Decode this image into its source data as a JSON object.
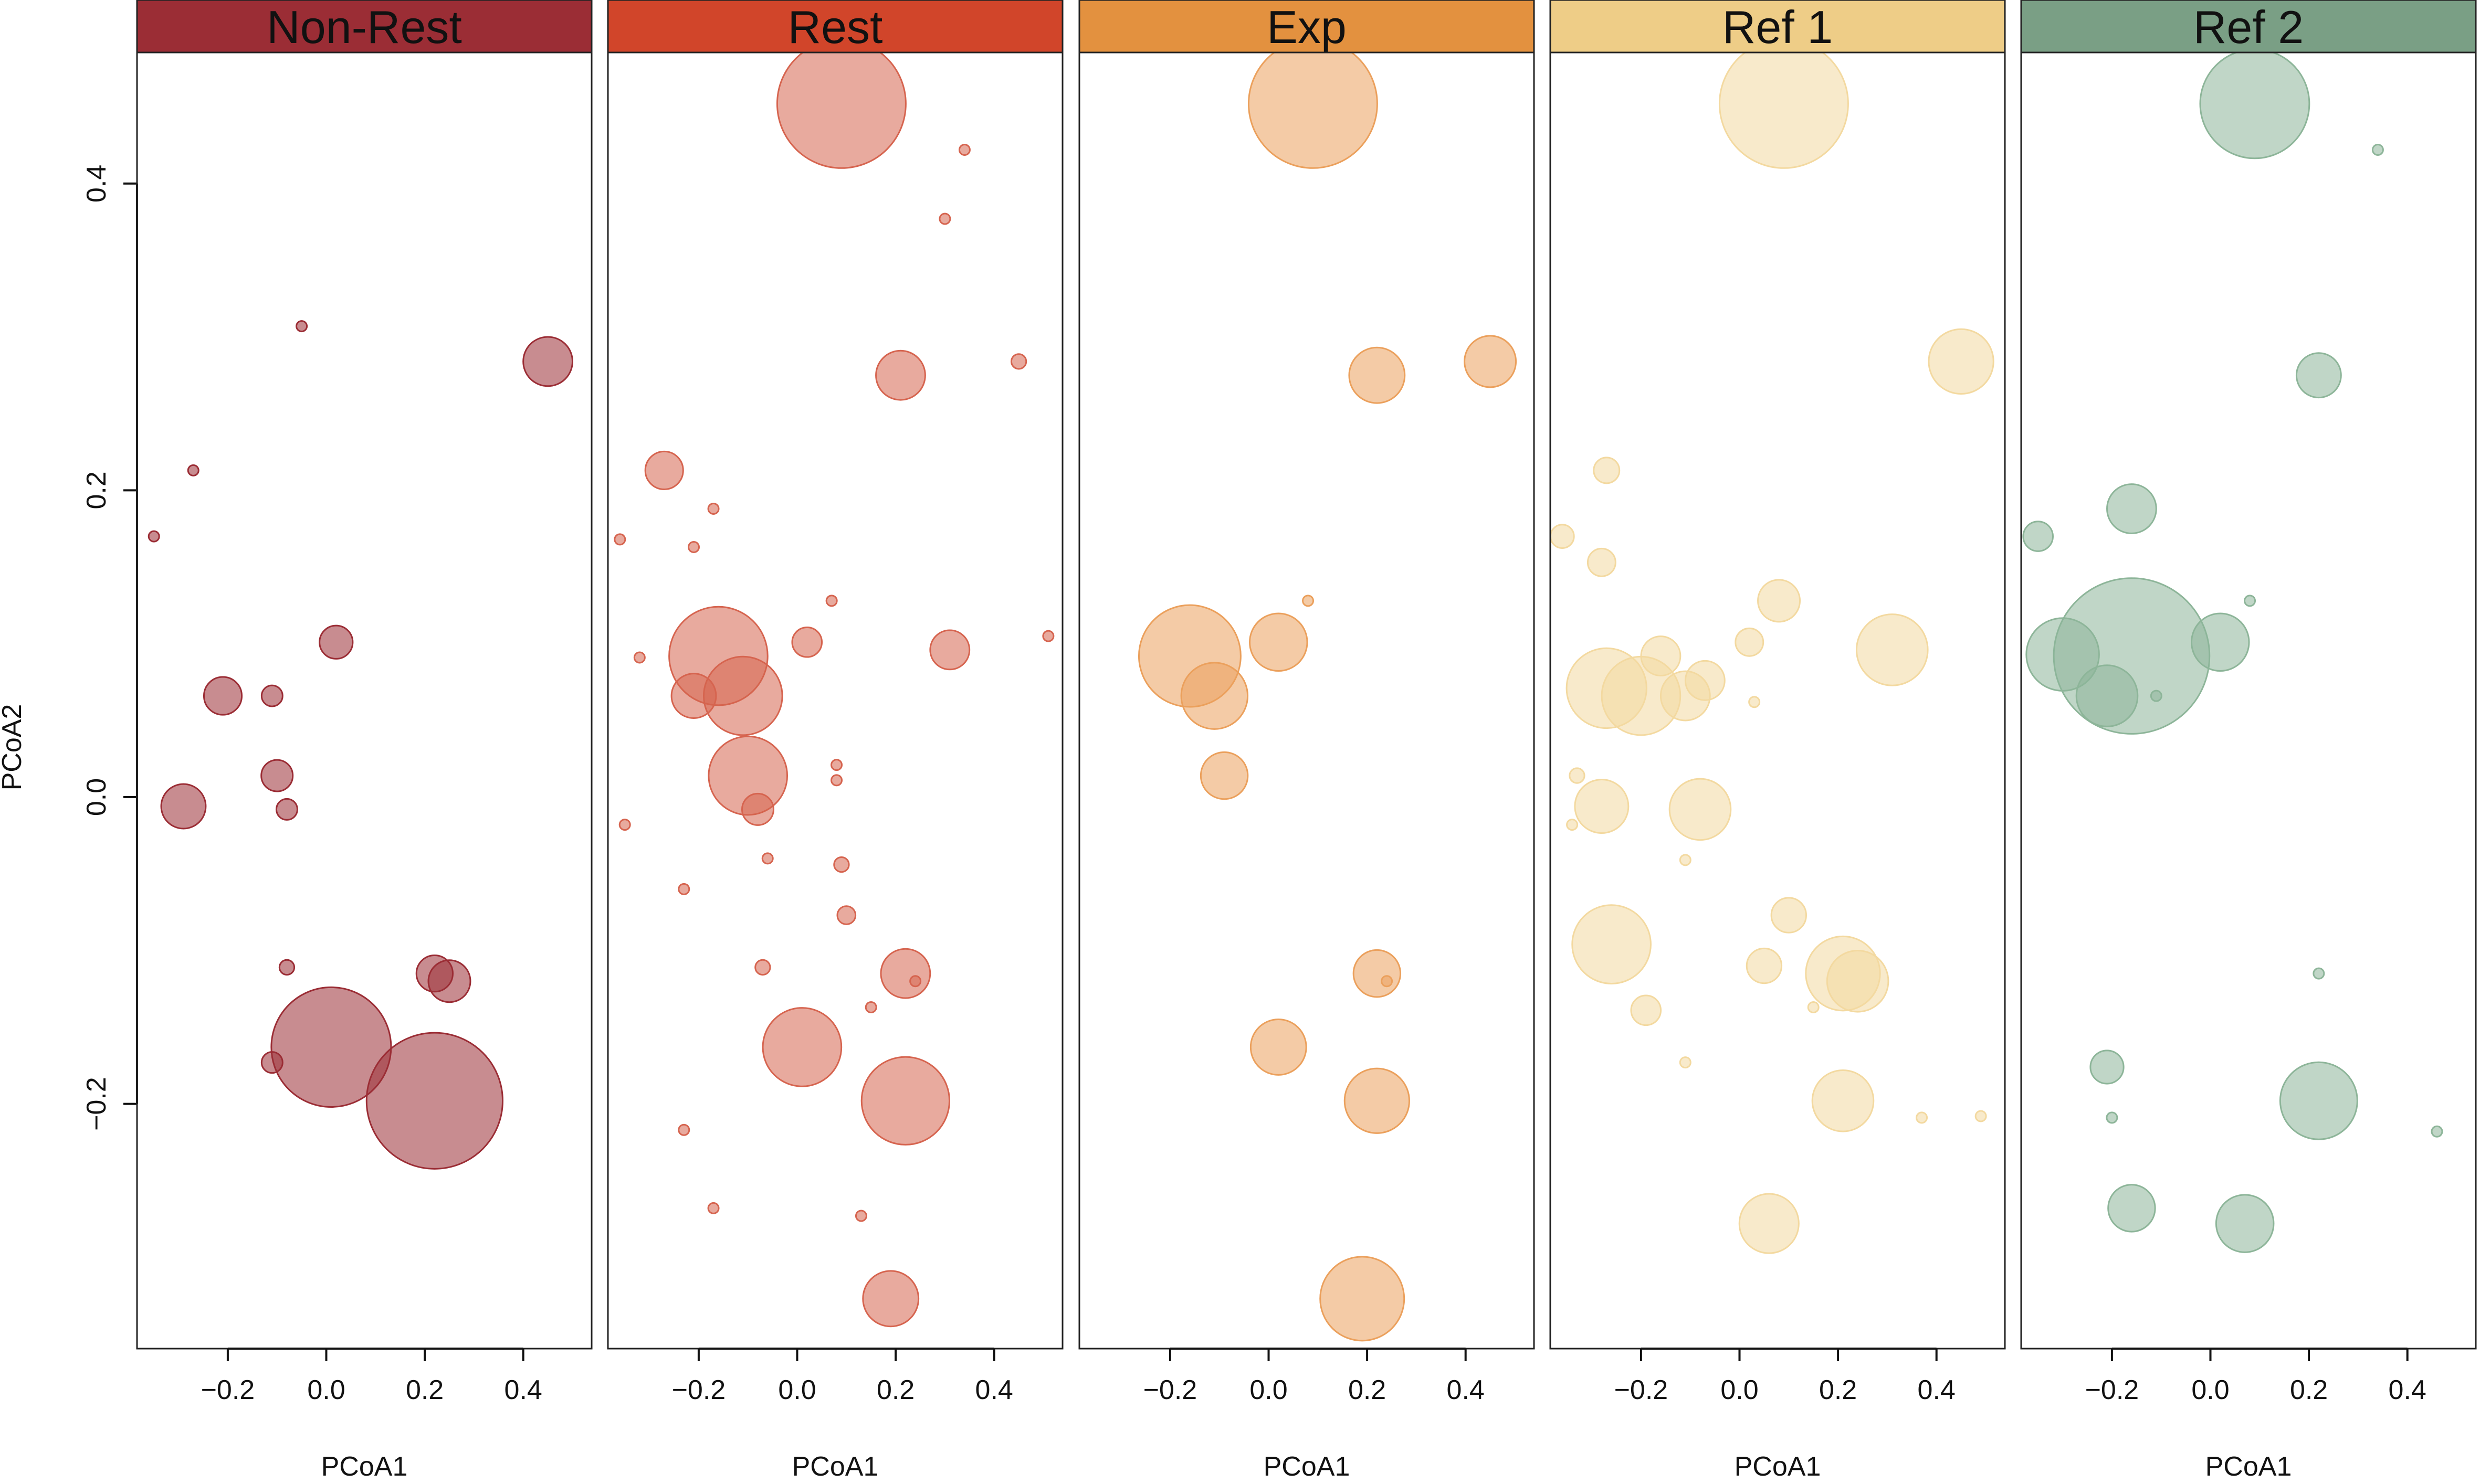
{
  "chart_data": {
    "type": "scatter",
    "subtype": "bubble-faceted",
    "xlabel": "PCoA1",
    "ylabel": "PCoA2",
    "xlim": [
      -0.38,
      0.55
    ],
    "ylim": [
      -0.36,
      0.48
    ],
    "x_ticks": [
      -0.2,
      0.0,
      0.2,
      0.4
    ],
    "x_tick_labels": [
      "−0.2",
      "0.0",
      "0.2",
      "0.4"
    ],
    "y_ticks": [
      -0.2,
      0.0,
      0.2,
      0.4
    ],
    "y_tick_labels": [
      "−0.2",
      "0.0",
      "0.2",
      "0.4"
    ],
    "panels": [
      {
        "name": "Non-Rest",
        "header_color": "#9b2d35",
        "point_color": "#9b2d35",
        "points": [
          {
            "x": -0.35,
            "y": 0.17,
            "size": 1
          },
          {
            "x": -0.27,
            "y": 0.213,
            "size": 1
          },
          {
            "x": -0.05,
            "y": 0.307,
            "size": 1
          },
          {
            "x": 0.45,
            "y": 0.284,
            "size": 22
          },
          {
            "x": 0.02,
            "y": 0.101,
            "size": 10
          },
          {
            "x": -0.21,
            "y": 0.066,
            "size": 13
          },
          {
            "x": -0.11,
            "y": 0.066,
            "size": 4
          },
          {
            "x": -0.1,
            "y": 0.014,
            "size": 9
          },
          {
            "x": -0.08,
            "y": -0.008,
            "size": 4
          },
          {
            "x": -0.29,
            "y": -0.006,
            "size": 18
          },
          {
            "x": -0.08,
            "y": -0.111,
            "size": 2
          },
          {
            "x": 0.22,
            "y": -0.115,
            "size": 12
          },
          {
            "x": 0.25,
            "y": -0.12,
            "size": 16
          },
          {
            "x": -0.11,
            "y": -0.173,
            "size": 4
          },
          {
            "x": 0.01,
            "y": -0.163,
            "size": 130
          },
          {
            "x": 0.22,
            "y": -0.198,
            "size": 168
          }
        ]
      },
      {
        "name": "Rest",
        "header_color": "#d1452a",
        "point_color": "#d6644f",
        "points": [
          {
            "x": 0.09,
            "y": 0.452,
            "size": 150
          },
          {
            "x": 0.34,
            "y": 0.422,
            "size": 1
          },
          {
            "x": 0.3,
            "y": 0.377,
            "size": 1
          },
          {
            "x": 0.45,
            "y": 0.284,
            "size": 2
          },
          {
            "x": 0.21,
            "y": 0.275,
            "size": 22
          },
          {
            "x": -0.27,
            "y": 0.213,
            "size": 13
          },
          {
            "x": -0.17,
            "y": 0.188,
            "size": 1
          },
          {
            "x": -0.36,
            "y": 0.168,
            "size": 1
          },
          {
            "x": -0.21,
            "y": 0.163,
            "size": 1
          },
          {
            "x": 0.07,
            "y": 0.128,
            "size": 1
          },
          {
            "x": 0.02,
            "y": 0.101,
            "size": 8
          },
          {
            "x": 0.51,
            "y": 0.105,
            "size": 1
          },
          {
            "x": 0.31,
            "y": 0.096,
            "size": 14
          },
          {
            "x": -0.32,
            "y": 0.091,
            "size": 1
          },
          {
            "x": -0.16,
            "y": 0.092,
            "size": 88
          },
          {
            "x": -0.21,
            "y": 0.066,
            "size": 18
          },
          {
            "x": -0.11,
            "y": 0.066,
            "size": 56
          },
          {
            "x": -0.1,
            "y": 0.014,
            "size": 56
          },
          {
            "x": -0.08,
            "y": -0.008,
            "size": 9
          },
          {
            "x": 0.08,
            "y": 0.021,
            "size": 1
          },
          {
            "x": 0.08,
            "y": 0.011,
            "size": 1
          },
          {
            "x": -0.35,
            "y": -0.018,
            "size": 1
          },
          {
            "x": -0.06,
            "y": -0.04,
            "size": 1
          },
          {
            "x": 0.09,
            "y": -0.044,
            "size": 2
          },
          {
            "x": -0.23,
            "y": -0.06,
            "size": 1
          },
          {
            "x": 0.1,
            "y": -0.077,
            "size": 3
          },
          {
            "x": -0.07,
            "y": -0.111,
            "size": 2
          },
          {
            "x": 0.22,
            "y": -0.115,
            "size": 22
          },
          {
            "x": 0.24,
            "y": -0.12,
            "size": 1
          },
          {
            "x": 0.15,
            "y": -0.137,
            "size": 1
          },
          {
            "x": 0.01,
            "y": -0.163,
            "size": 56
          },
          {
            "x": 0.22,
            "y": -0.198,
            "size": 70
          },
          {
            "x": -0.23,
            "y": -0.217,
            "size": 1
          },
          {
            "x": -0.17,
            "y": -0.268,
            "size": 1
          },
          {
            "x": 0.13,
            "y": -0.273,
            "size": 1
          },
          {
            "x": 0.19,
            "y": -0.327,
            "size": 28
          }
        ]
      },
      {
        "name": "Exp",
        "header_color": "#e3913f",
        "point_color": "#eba05c",
        "points": [
          {
            "x": 0.09,
            "y": 0.452,
            "size": 150
          },
          {
            "x": 0.22,
            "y": 0.275,
            "size": 28
          },
          {
            "x": 0.45,
            "y": 0.284,
            "size": 24
          },
          {
            "x": 0.08,
            "y": 0.128,
            "size": 1
          },
          {
            "x": 0.02,
            "y": 0.101,
            "size": 30
          },
          {
            "x": -0.16,
            "y": 0.092,
            "size": 94
          },
          {
            "x": -0.11,
            "y": 0.066,
            "size": 40
          },
          {
            "x": -0.09,
            "y": 0.014,
            "size": 20
          },
          {
            "x": 0.22,
            "y": -0.115,
            "size": 20
          },
          {
            "x": 0.24,
            "y": -0.12,
            "size": 1
          },
          {
            "x": 0.02,
            "y": -0.163,
            "size": 28
          },
          {
            "x": 0.22,
            "y": -0.198,
            "size": 38
          },
          {
            "x": 0.19,
            "y": -0.327,
            "size": 64
          }
        ]
      },
      {
        "name": "Ref 1",
        "header_color": "#eecd87",
        "point_color": "#f3d9a0",
        "points": [
          {
            "x": 0.09,
            "y": 0.452,
            "size": 150
          },
          {
            "x": 0.45,
            "y": 0.284,
            "size": 38
          },
          {
            "x": -0.27,
            "y": 0.213,
            "size": 6
          },
          {
            "x": -0.36,
            "y": 0.17,
            "size": 5
          },
          {
            "x": -0.28,
            "y": 0.153,
            "size": 7
          },
          {
            "x": 0.08,
            "y": 0.128,
            "size": 16
          },
          {
            "x": 0.02,
            "y": 0.101,
            "size": 7
          },
          {
            "x": 0.31,
            "y": 0.096,
            "size": 46
          },
          {
            "x": -0.16,
            "y": 0.092,
            "size": 14
          },
          {
            "x": -0.07,
            "y": 0.076,
            "size": 14
          },
          {
            "x": -0.27,
            "y": 0.071,
            "size": 58
          },
          {
            "x": -0.2,
            "y": 0.066,
            "size": 56
          },
          {
            "x": -0.11,
            "y": 0.066,
            "size": 22
          },
          {
            "x": 0.03,
            "y": 0.062,
            "size": 1
          },
          {
            "x": -0.33,
            "y": 0.014,
            "size": 2
          },
          {
            "x": -0.28,
            "y": -0.006,
            "size": 26
          },
          {
            "x": -0.08,
            "y": -0.008,
            "size": 34
          },
          {
            "x": -0.34,
            "y": -0.018,
            "size": 1
          },
          {
            "x": -0.11,
            "y": -0.041,
            "size": 1
          },
          {
            "x": 0.1,
            "y": -0.077,
            "size": 11
          },
          {
            "x": -0.26,
            "y": -0.096,
            "size": 56
          },
          {
            "x": 0.05,
            "y": -0.11,
            "size": 11
          },
          {
            "x": 0.21,
            "y": -0.115,
            "size": 50
          },
          {
            "x": 0.24,
            "y": -0.12,
            "size": 34
          },
          {
            "x": 0.15,
            "y": -0.137,
            "size": 1
          },
          {
            "x": -0.19,
            "y": -0.139,
            "size": 8
          },
          {
            "x": -0.11,
            "y": -0.173,
            "size": 1
          },
          {
            "x": 0.21,
            "y": -0.198,
            "size": 34
          },
          {
            "x": 0.37,
            "y": -0.209,
            "size": 1
          },
          {
            "x": 0.49,
            "y": -0.208,
            "size": 1
          },
          {
            "x": 0.06,
            "y": -0.278,
            "size": 32
          }
        ]
      },
      {
        "name": "Ref 2",
        "header_color": "#7a9f85",
        "point_color": "#8db599",
        "points": [
          {
            "x": 0.09,
            "y": 0.452,
            "size": 108
          },
          {
            "x": 0.34,
            "y": 0.422,
            "size": 1
          },
          {
            "x": 0.22,
            "y": 0.275,
            "size": 18
          },
          {
            "x": -0.16,
            "y": 0.188,
            "size": 22
          },
          {
            "x": -0.35,
            "y": 0.17,
            "size": 8
          },
          {
            "x": 0.08,
            "y": 0.128,
            "size": 1
          },
          {
            "x": 0.02,
            "y": 0.101,
            "size": 30
          },
          {
            "x": -0.3,
            "y": 0.093,
            "size": 48
          },
          {
            "x": -0.16,
            "y": 0.092,
            "size": 220
          },
          {
            "x": -0.21,
            "y": 0.066,
            "size": 34
          },
          {
            "x": -0.11,
            "y": 0.066,
            "size": 1
          },
          {
            "x": 0.22,
            "y": -0.115,
            "size": 1
          },
          {
            "x": -0.21,
            "y": -0.176,
            "size": 10
          },
          {
            "x": 0.22,
            "y": -0.198,
            "size": 54
          },
          {
            "x": -0.2,
            "y": -0.209,
            "size": 1
          },
          {
            "x": 0.46,
            "y": -0.218,
            "size": 1
          },
          {
            "x": -0.16,
            "y": -0.268,
            "size": 20
          },
          {
            "x": 0.07,
            "y": -0.278,
            "size": 30
          }
        ]
      }
    ]
  }
}
